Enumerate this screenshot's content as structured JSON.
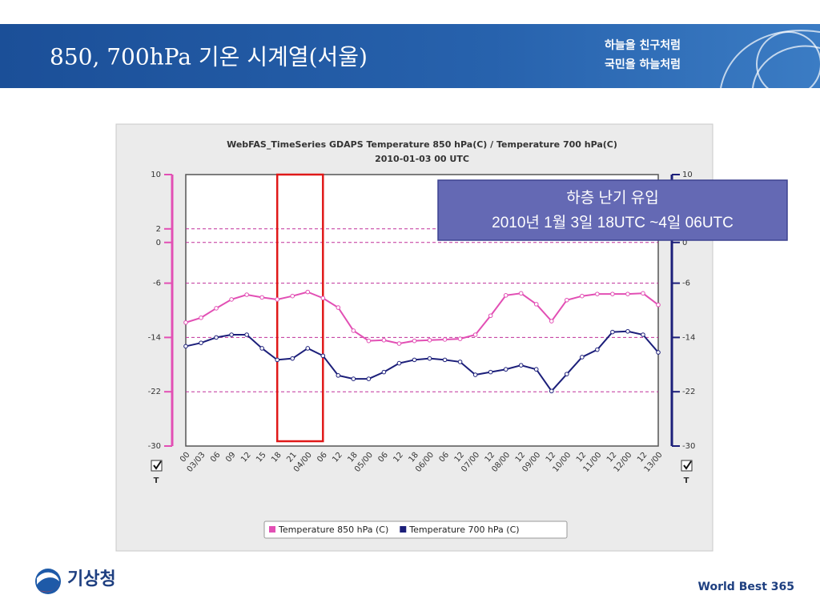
{
  "header": {
    "title": "850, 700hPa 기온 시계열(서울)",
    "slogan": [
      "하늘을 친구처럼",
      "국민을 하늘처럼"
    ]
  },
  "footer": {
    "logo_text": "기상청",
    "tagline": "World Best 365"
  },
  "chart_data": {
    "type": "line",
    "title": "WebFAS_TimeSeries GDAPS Temperature 850 hPa(C) / Temperature 700 hPa(C)",
    "subtitle": "2010-01-03 00 UTC",
    "categories": [
      "00",
      "03/03",
      "06",
      "09",
      "12",
      "15",
      "18",
      "21",
      "04/00",
      "06",
      "12",
      "18",
      "05/00",
      "06",
      "12",
      "18",
      "06/00",
      "06",
      "12",
      "07/00",
      "12",
      "08/00",
      "12",
      "09/00",
      "12",
      "10/00",
      "12",
      "11/00",
      "12",
      "12/00",
      "12",
      "13/00"
    ],
    "series": [
      {
        "name": "Temperature 850 hPa (C)",
        "color": "#e24fb4",
        "axis": "y",
        "values": [
          -11.8,
          -11.1,
          -9.7,
          -8.4,
          -7.7,
          -8.1,
          -8.4,
          -7.9,
          -7.3,
          -8.2,
          -9.6,
          -13.0,
          -14.5,
          -14.4,
          -14.9,
          -14.5,
          -14.4,
          -14.3,
          -14.2,
          -13.6,
          -10.8,
          -7.8,
          -7.5,
          -9.1,
          -11.6,
          -8.5,
          -7.9,
          -7.6,
          -7.6,
          -7.6,
          -7.5,
          -9.2
        ]
      },
      {
        "name": "Temperature 700 hPa (C)",
        "color": "#1c1f7a",
        "axis": "y2",
        "values": [
          -15.3,
          -14.8,
          -14.0,
          -13.6,
          -13.6,
          -15.6,
          -17.3,
          -17.1,
          -15.6,
          -16.7,
          -19.6,
          -20.1,
          -20.1,
          -19.1,
          -17.8,
          -17.3,
          -17.1,
          -17.3,
          -17.6,
          -19.5,
          -19.1,
          -18.7,
          -18.1,
          -18.7,
          -21.9,
          -19.4,
          -16.9,
          -15.8,
          -13.2,
          -13.1,
          -13.6,
          -16.2
        ]
      }
    ],
    "ylim": [
      -30,
      10
    ],
    "yticks": [
      10,
      2,
      0,
      -6,
      -14,
      -22,
      -30
    ],
    "ycolor": "#e24fb4",
    "y2lim": [
      -30,
      10
    ],
    "y2ticks": [
      10,
      0,
      -6,
      -14,
      -22,
      -30
    ],
    "y2color": "#1c1f7a",
    "toggle_labels": [
      "T",
      "T"
    ],
    "grid": true,
    "grid_color": "#c0309a",
    "highlight": {
      "start": 6,
      "end": 9,
      "color": "#e01818"
    },
    "annotation": {
      "lines": [
        "하층 난기 유입",
        "2010년 1월 3일 18UTC ~4일 06UTC"
      ]
    },
    "legend": "bottom"
  }
}
